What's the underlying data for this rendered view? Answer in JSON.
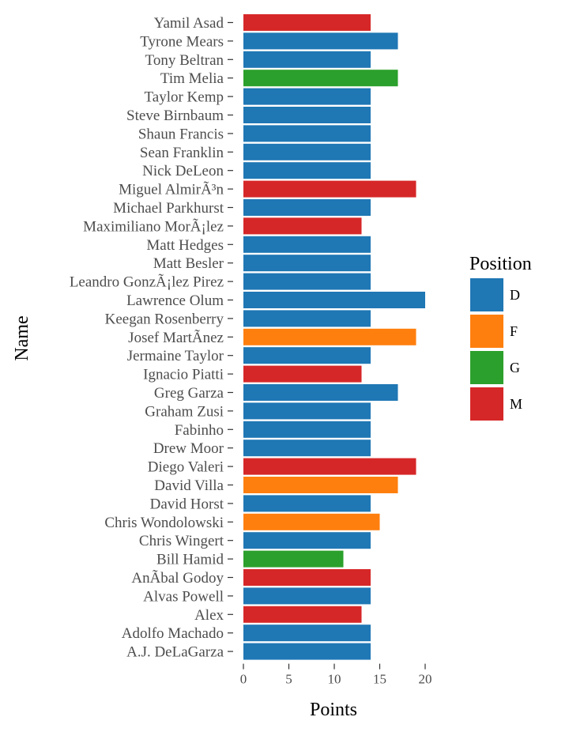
{
  "chart_data": {
    "type": "bar",
    "orientation": "horizontal",
    "xlabel": "Points",
    "ylabel": "Name",
    "xlim": [
      0,
      21
    ],
    "x_ticks": [
      0,
      5,
      10,
      15,
      20
    ],
    "grid": false,
    "legend": {
      "title": "Position",
      "placement": "right",
      "entries": [
        {
          "label": "D",
          "color": "#1f77b4"
        },
        {
          "label": "F",
          "color": "#ff7f0e"
        },
        {
          "label": "G",
          "color": "#2ca02c"
        },
        {
          "label": "M",
          "color": "#d62728"
        }
      ]
    },
    "bars": [
      {
        "name": "Yamil Asad",
        "points": 14,
        "position": "M"
      },
      {
        "name": "Tyrone Mears",
        "points": 17,
        "position": "D"
      },
      {
        "name": "Tony Beltran",
        "points": 14,
        "position": "D"
      },
      {
        "name": "Tim Melia",
        "points": 17,
        "position": "G"
      },
      {
        "name": "Taylor Kemp",
        "points": 14,
        "position": "D"
      },
      {
        "name": "Steve Birnbaum",
        "points": 14,
        "position": "D"
      },
      {
        "name": "Shaun Francis",
        "points": 14,
        "position": "D"
      },
      {
        "name": "Sean Franklin",
        "points": 14,
        "position": "D"
      },
      {
        "name": "Nick DeLeon",
        "points": 14,
        "position": "D"
      },
      {
        "name": "Miguel AlmirÃ³n",
        "points": 19,
        "position": "M"
      },
      {
        "name": "Michael Parkhurst",
        "points": 14,
        "position": "D"
      },
      {
        "name": "Maximiliano MorÃ¡lez",
        "points": 13,
        "position": "M"
      },
      {
        "name": "Matt Hedges",
        "points": 14,
        "position": "D"
      },
      {
        "name": "Matt Besler",
        "points": 14,
        "position": "D"
      },
      {
        "name": "Leandro GonzÃ¡lez Pirez",
        "points": 14,
        "position": "D"
      },
      {
        "name": "Lawrence Olum",
        "points": 20,
        "position": "D"
      },
      {
        "name": "Keegan Rosenberry",
        "points": 14,
        "position": "D"
      },
      {
        "name": "Josef MartÃ­nez",
        "points": 19,
        "position": "F"
      },
      {
        "name": "Jermaine Taylor",
        "points": 14,
        "position": "D"
      },
      {
        "name": "Ignacio Piatti",
        "points": 13,
        "position": "M"
      },
      {
        "name": "Greg Garza",
        "points": 17,
        "position": "D"
      },
      {
        "name": "Graham Zusi",
        "points": 14,
        "position": "D"
      },
      {
        "name": "Fabinho",
        "points": 14,
        "position": "D"
      },
      {
        "name": "Drew Moor",
        "points": 14,
        "position": "D"
      },
      {
        "name": "Diego Valeri",
        "points": 19,
        "position": "M"
      },
      {
        "name": "David Villa",
        "points": 17,
        "position": "F"
      },
      {
        "name": "David Horst",
        "points": 14,
        "position": "D"
      },
      {
        "name": "Chris Wondolowski",
        "points": 15,
        "position": "F"
      },
      {
        "name": "Chris Wingert",
        "points": 14,
        "position": "D"
      },
      {
        "name": "Bill Hamid",
        "points": 11,
        "position": "G"
      },
      {
        "name": "AnÃ­bal Godoy",
        "points": 14,
        "position": "M"
      },
      {
        "name": "Alvas Powell",
        "points": 14,
        "position": "D"
      },
      {
        "name": "Alex",
        "points": 13,
        "position": "M"
      },
      {
        "name": "Adolfo Machado",
        "points": 14,
        "position": "D"
      },
      {
        "name": "A.J. DeLaGarza",
        "points": 14,
        "position": "D"
      }
    ]
  }
}
